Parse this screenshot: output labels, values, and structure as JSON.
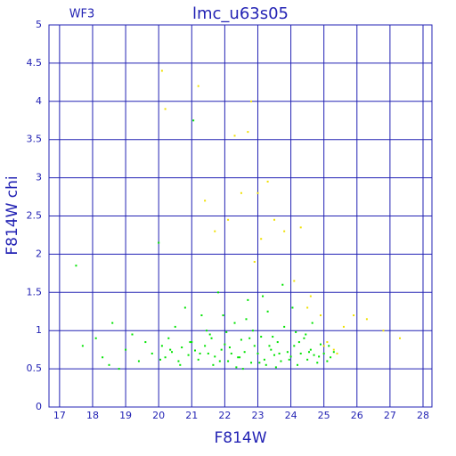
{
  "chart_data": {
    "type": "scatter",
    "title": "lmc_u63s05",
    "annotation": "WF3",
    "x_label": "F814W",
    "y_label": "F814W chi",
    "xlim": [
      16.68,
      28.27
    ],
    "ylim": [
      0,
      5
    ],
    "xticks": [
      17,
      18,
      19,
      20,
      21,
      22,
      23,
      24,
      25,
      26,
      27,
      28
    ],
    "yticks": [
      0,
      0.5,
      1,
      1.5,
      2,
      2.5,
      3,
      3.5,
      4,
      4.5,
      5
    ],
    "grid": true,
    "axis_color": "#2323b4",
    "series": [
      {
        "color": "#00e400",
        "x": [
          17.5,
          17.7,
          18.1,
          18.3,
          18.5,
          18.6,
          18.8,
          19.0,
          19.2,
          19.4,
          19.6,
          19.8,
          20.0,
          20.1,
          20.2,
          20.3,
          20.4,
          20.5,
          20.6,
          20.7,
          20.8,
          20.9,
          21.0,
          21.1,
          21.2,
          21.3,
          21.4,
          21.5,
          21.6,
          21.7,
          21.8,
          21.9,
          22.0,
          22.1,
          22.2,
          22.3,
          22.4,
          22.5,
          22.6,
          22.7,
          22.8,
          22.9,
          23.0,
          23.1,
          23.2,
          23.3,
          23.4,
          23.5,
          23.6,
          23.7,
          23.8,
          23.9,
          24.0,
          24.1,
          24.2,
          24.3,
          24.4,
          24.5,
          24.6,
          24.7,
          24.8,
          24.9,
          25.0,
          25.1,
          25.2,
          25.3,
          20.05,
          20.35,
          20.65,
          20.95,
          21.25,
          21.55,
          21.85,
          22.15,
          22.45,
          22.75,
          23.05,
          23.35,
          23.65,
          23.95,
          24.25,
          24.55,
          24.85,
          25.15,
          21.05,
          21.45,
          21.95,
          22.35,
          22.85,
          23.25,
          23.75,
          24.15,
          24.65,
          22.05,
          22.55,
          23.15,
          23.55,
          24.05,
          24.45,
          21.65,
          22.65,
          23.45
        ],
        "values": [
          1.85,
          0.8,
          0.9,
          0.65,
          0.55,
          1.1,
          0.5,
          0.75,
          0.95,
          0.6,
          0.85,
          0.7,
          2.15,
          0.8,
          0.65,
          0.9,
          0.72,
          1.05,
          0.6,
          0.78,
          1.3,
          0.68,
          0.85,
          0.74,
          0.62,
          1.2,
          0.8,
          0.7,
          0.9,
          0.66,
          1.5,
          0.75,
          0.82,
          0.6,
          0.7,
          1.1,
          0.65,
          0.88,
          0.72,
          1.4,
          0.58,
          0.8,
          0.7,
          0.92,
          0.62,
          1.25,
          0.75,
          0.68,
          0.85,
          0.6,
          1.05,
          0.72,
          0.66,
          0.8,
          0.55,
          0.7,
          0.9,
          0.62,
          0.75,
          0.68,
          0.58,
          0.82,
          0.7,
          0.6,
          0.65,
          0.72,
          0.62,
          0.75,
          0.55,
          0.85,
          0.7,
          0.95,
          0.6,
          0.78,
          0.65,
          0.9,
          0.58,
          0.8,
          0.7,
          0.62,
          0.85,
          0.72,
          0.66,
          0.8,
          3.75,
          1.0,
          1.2,
          0.52,
          1.0,
          0.55,
          1.6,
          0.98,
          1.1,
          0.98,
          0.5,
          1.45,
          0.52,
          1.3,
          0.95,
          0.55,
          1.15,
          0.92
        ]
      },
      {
        "color": "#f0e000",
        "x": [
          20.1,
          20.2,
          21.2,
          21.4,
          21.7,
          22.1,
          22.3,
          22.5,
          22.7,
          22.9,
          23.1,
          23.3,
          23.5,
          23.8,
          24.1,
          24.3,
          24.6,
          24.9,
          25.1,
          25.3,
          25.6,
          25.9,
          26.3,
          26.8,
          27.3,
          22.8,
          23.0,
          24.5,
          25.0,
          25.4
        ],
        "values": [
          4.4,
          3.9,
          4.2,
          2.7,
          2.3,
          2.45,
          3.55,
          2.8,
          3.6,
          1.9,
          2.2,
          2.95,
          2.45,
          2.3,
          1.65,
          2.35,
          1.45,
          1.2,
          0.85,
          0.75,
          1.05,
          1.2,
          1.15,
          1.0,
          0.9,
          4.0,
          2.8,
          1.3,
          0.8,
          0.7
        ]
      }
    ]
  }
}
